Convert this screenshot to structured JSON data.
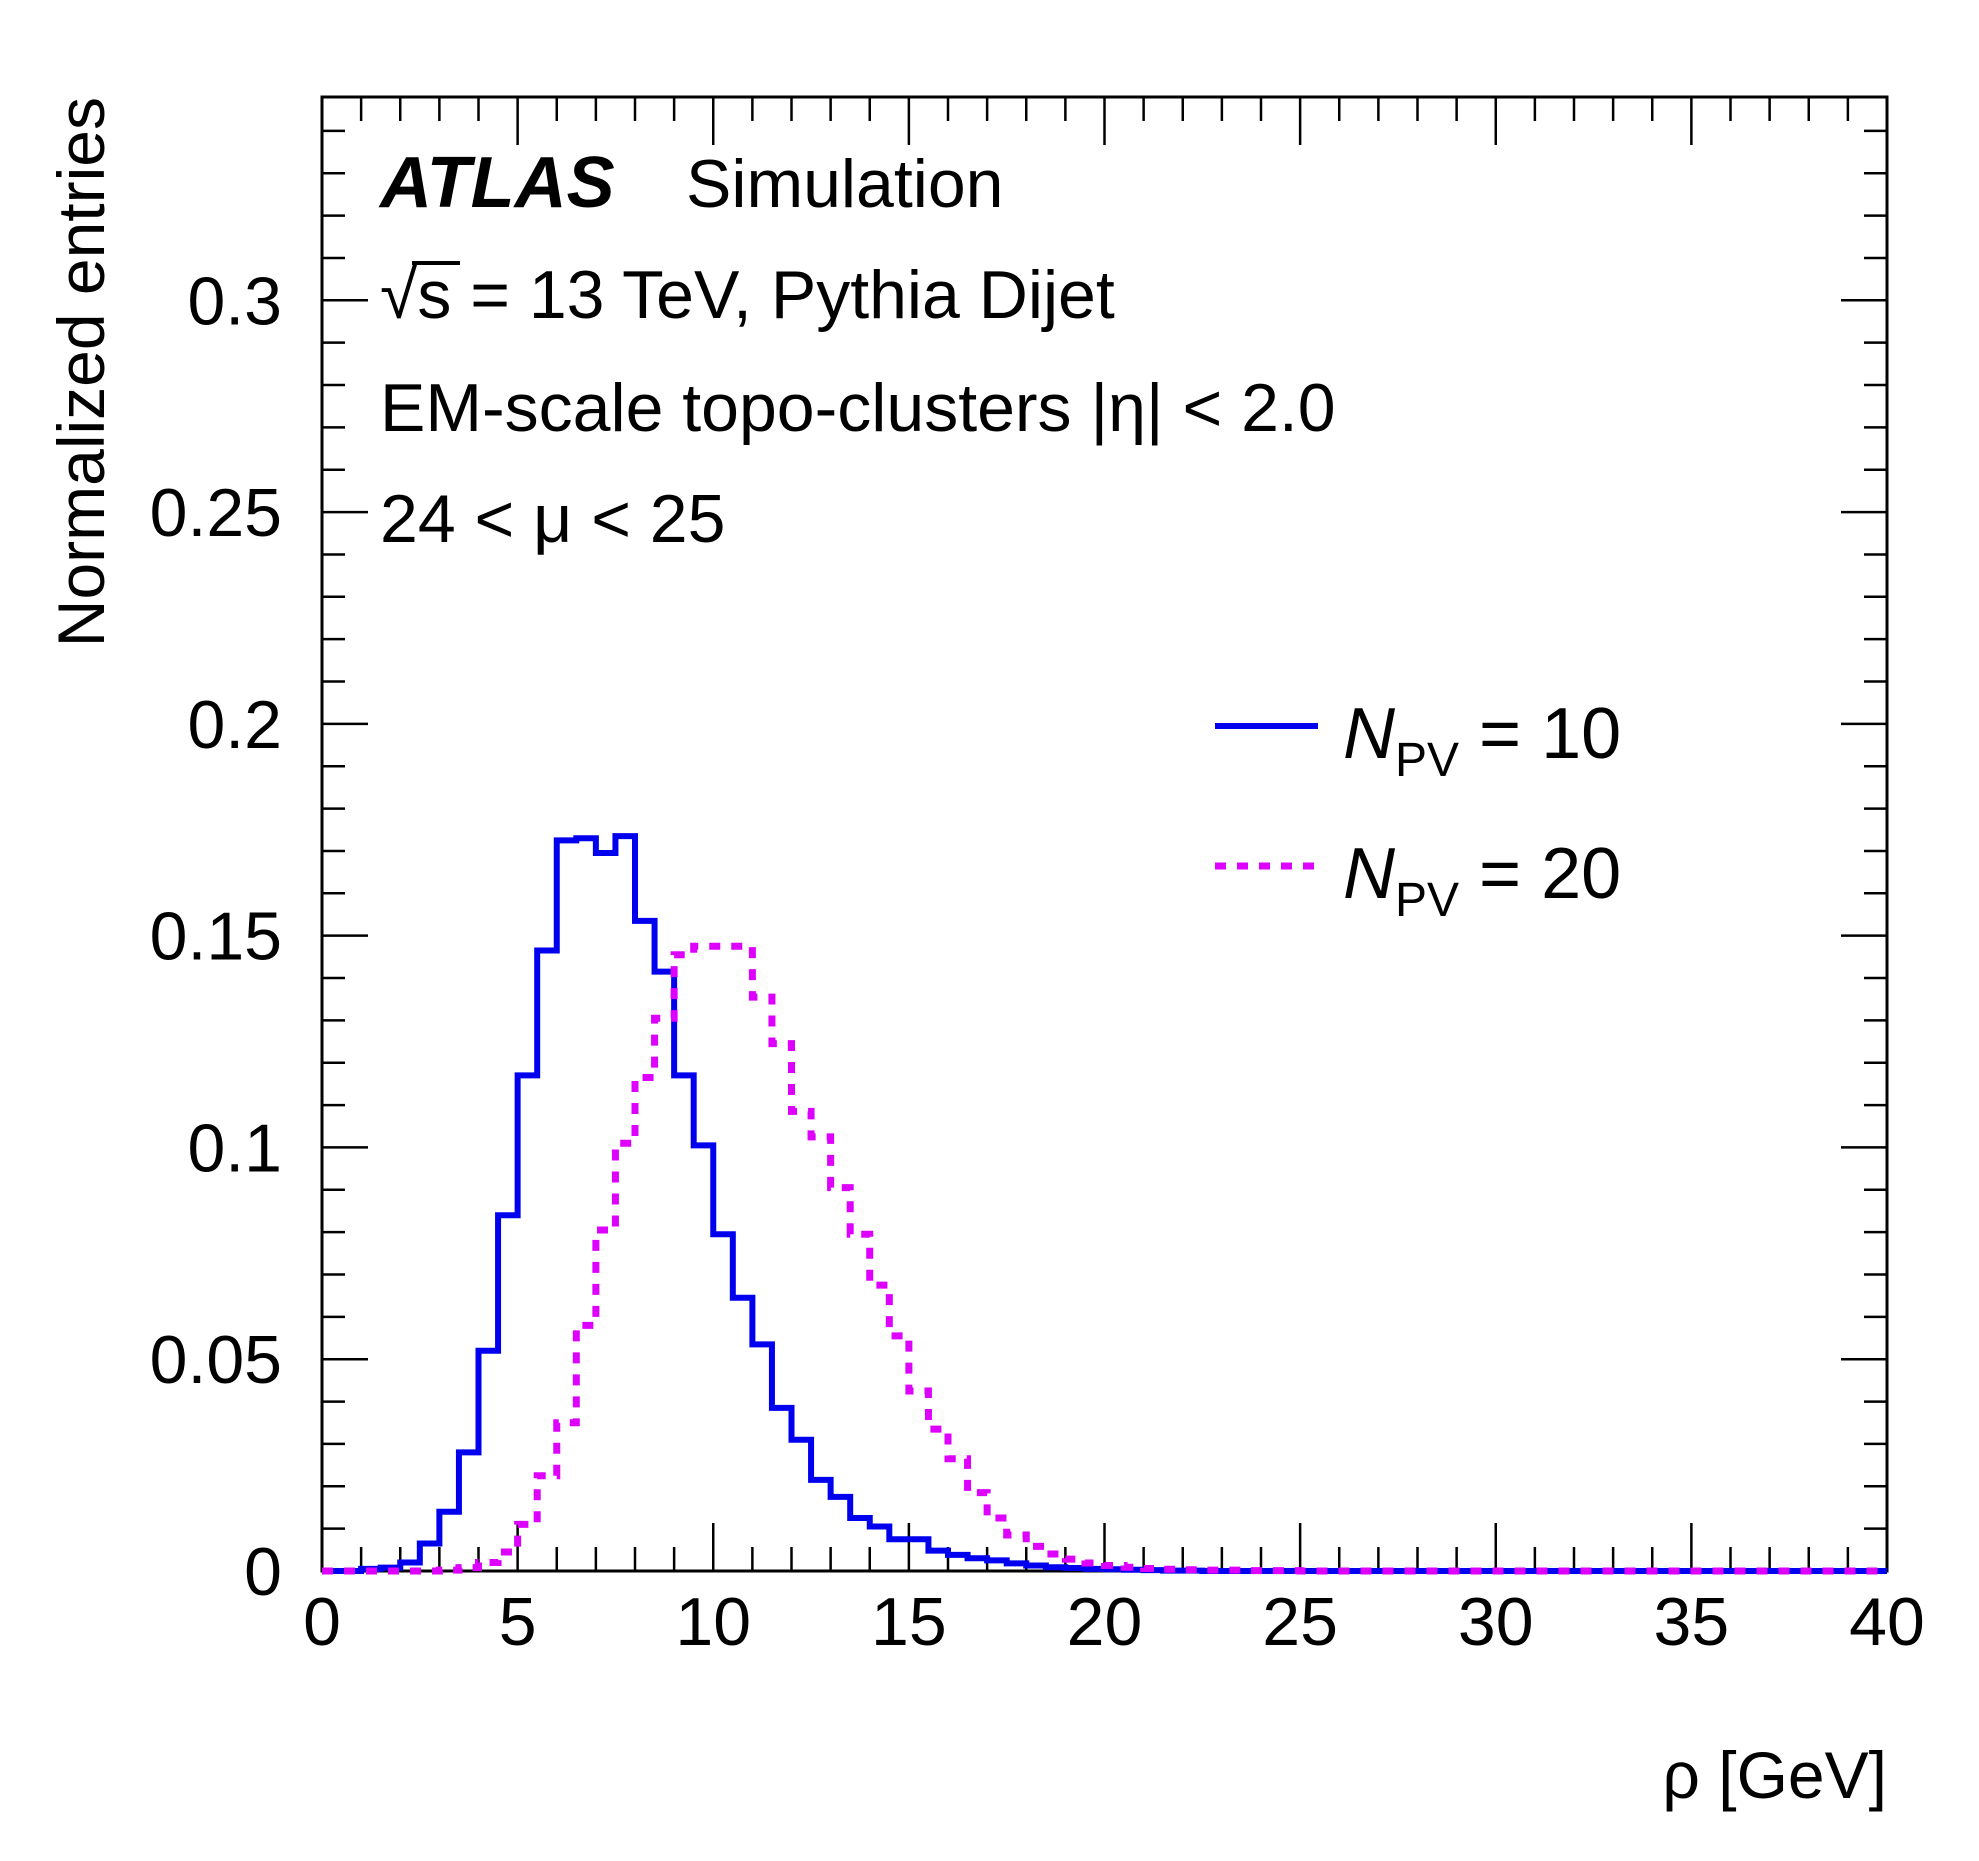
{
  "chart_data": {
    "type": "line",
    "style": "step-histogram",
    "xlabel": "ρ [GeV]",
    "ylabel": "Normalized entries",
    "xlim": [
      0,
      40
    ],
    "ylim": [
      0,
      0.348
    ],
    "x_ticks": [
      "0",
      "5",
      "10",
      "15",
      "20",
      "25",
      "30",
      "35",
      "40"
    ],
    "y_ticks": [
      "0",
      "0.05",
      "0.1",
      "0.15",
      "0.2",
      "0.25",
      "0.3"
    ],
    "bin_width": 0.5,
    "annotations": {
      "experiment": "ATLAS",
      "status": "Simulation",
      "energy_sqrt": "√",
      "energy_s": "s",
      "energy_rest": " = 13 TeV, Pythia Dijet",
      "selection": "EM-scale topo-clusters |η| < 2.0",
      "mu_range": "24 < μ < 25"
    },
    "legend_position": "right",
    "series": [
      {
        "name": "N_PV = 10",
        "legend_var": "N",
        "legend_sub": "PV",
        "legend_rest": " = 10",
        "color": "#0000ee",
        "dash": "solid",
        "values": [
          0.0,
          0.0,
          0.0005,
          0.0008,
          0.002,
          0.0065,
          0.014,
          0.028,
          0.052,
          0.084,
          0.117,
          0.1465,
          0.1725,
          0.173,
          0.1695,
          0.1735,
          0.1535,
          0.1415,
          0.117,
          0.1005,
          0.0795,
          0.0645,
          0.0535,
          0.0385,
          0.031,
          0.0215,
          0.0175,
          0.0125,
          0.0105,
          0.0075,
          0.0075,
          0.0048,
          0.0038,
          0.003,
          0.0025,
          0.0018,
          0.0013,
          0.0009,
          0.0007,
          0.0005,
          0.0004,
          0.0003,
          0.0002,
          0.0001,
          0.0001,
          0.0,
          0.0,
          0.0,
          0.0,
          0.0,
          0.0,
          0.0,
          0.0,
          0.0,
          0.0,
          0.0,
          0.0,
          0.0,
          0.0,
          0.0,
          0.0,
          0.0,
          0.0,
          0.0,
          0.0,
          0.0,
          0.0,
          0.0,
          0.0,
          0.0,
          0.0,
          0.0,
          0.0,
          0.0,
          0.0,
          0.0,
          0.0,
          0.0,
          0.0,
          0.0
        ]
      },
      {
        "name": "N_PV = 20",
        "legend_var": "N",
        "legend_sub": "PV",
        "legend_rest": " = 20",
        "color": "#dd00ff",
        "dash": "dotted",
        "values": [
          0.0,
          0.0,
          0.0,
          0.0,
          0.0,
          0.0,
          0.0002,
          0.0008,
          0.002,
          0.0045,
          0.011,
          0.0225,
          0.035,
          0.058,
          0.0805,
          0.101,
          0.1165,
          0.1305,
          0.1455,
          0.1475,
          0.1475,
          0.1475,
          0.1355,
          0.1245,
          0.1085,
          0.1025,
          0.0905,
          0.0795,
          0.0675,
          0.0555,
          0.0425,
          0.0335,
          0.0265,
          0.0185,
          0.0125,
          0.0085,
          0.0058,
          0.004,
          0.0028,
          0.0019,
          0.0013,
          0.0009,
          0.0006,
          0.0004,
          0.0003,
          0.0002,
          0.0002,
          0.0001,
          0.0001,
          0.0001,
          0.0,
          0.0,
          0.0,
          0.0,
          0.0,
          0.0,
          0.0,
          0.0,
          0.0,
          0.0,
          0.0,
          0.0,
          0.0,
          0.0,
          0.0,
          0.0,
          0.0,
          0.0,
          0.0,
          0.0,
          0.0,
          0.0,
          0.0,
          0.0,
          0.0,
          0.0,
          0.0,
          0.0,
          0.0,
          0.0
        ]
      }
    ]
  }
}
